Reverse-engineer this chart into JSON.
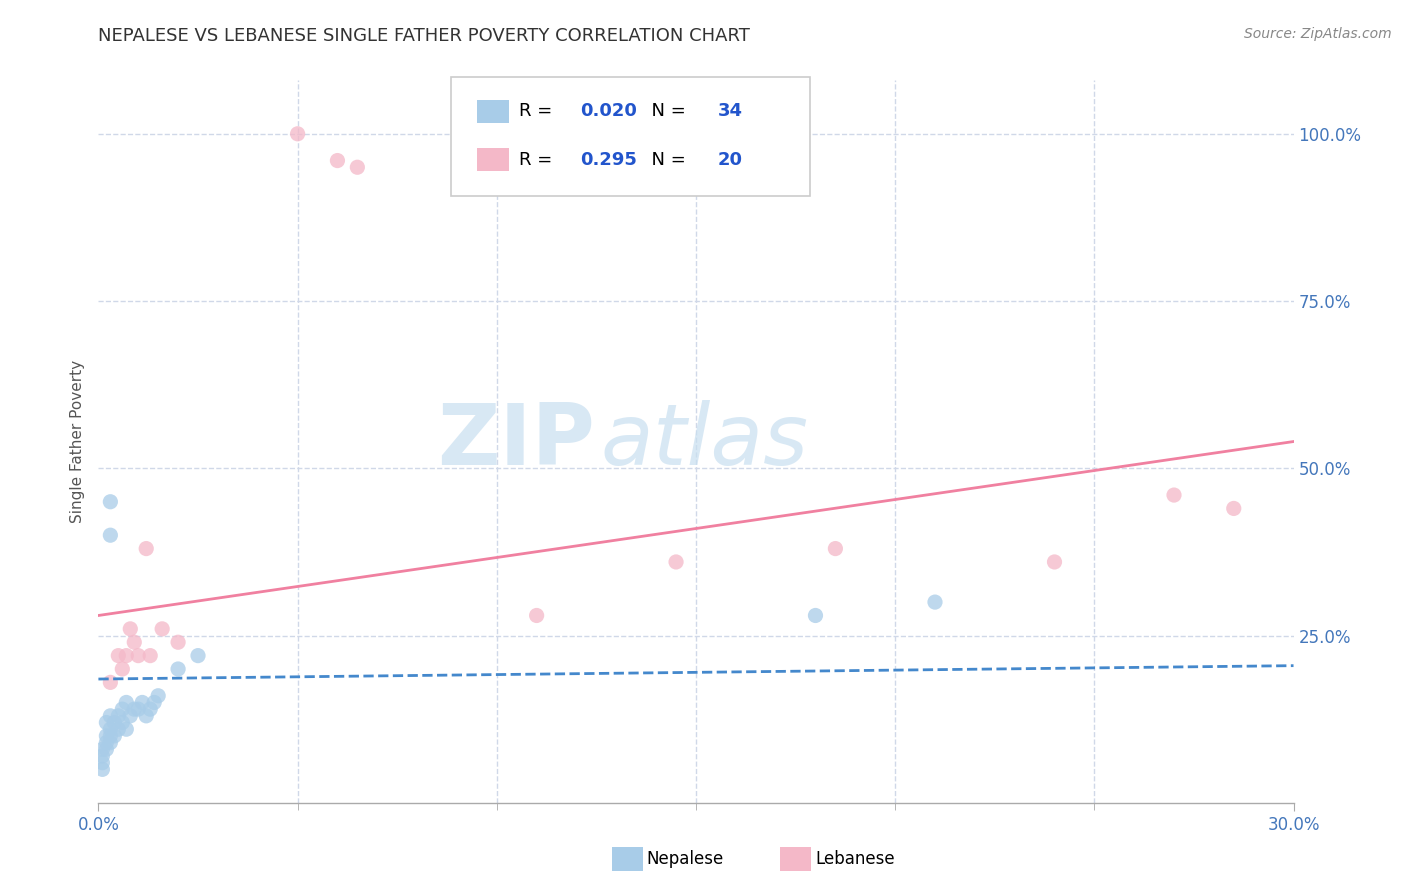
{
  "title": "NEPALESE VS LEBANESE SINGLE FATHER POVERTY CORRELATION CHART",
  "source": "Source: ZipAtlas.com",
  "ylabel": "Single Father Poverty",
  "xlim": [
    0.0,
    0.3
  ],
  "ylim": [
    0.0,
    1.08
  ],
  "xtick_values": [
    0.0,
    0.3
  ],
  "xtick_labels": [
    "0.0%",
    "30.0%"
  ],
  "xtick_minor_values": [
    0.05,
    0.1,
    0.15,
    0.2,
    0.25
  ],
  "ytick_values": [
    0.25,
    0.5,
    0.75,
    1.0
  ],
  "ytick_labels": [
    "25.0%",
    "50.0%",
    "75.0%",
    "100.0%"
  ],
  "nepalese_color": "#a8cce8",
  "lebanese_color": "#f4b8c8",
  "nepalese_R": 0.02,
  "nepalese_N": 34,
  "lebanese_R": 0.295,
  "lebanese_N": 20,
  "watermark_zip": "ZIP",
  "watermark_atlas": "atlas",
  "nepalese_scatter": [
    [
      0.001,
      0.05
    ],
    [
      0.001,
      0.06
    ],
    [
      0.001,
      0.07
    ],
    [
      0.001,
      0.08
    ],
    [
      0.002,
      0.08
    ],
    [
      0.002,
      0.09
    ],
    [
      0.002,
      0.1
    ],
    [
      0.002,
      0.12
    ],
    [
      0.003,
      0.09
    ],
    [
      0.003,
      0.1
    ],
    [
      0.003,
      0.11
    ],
    [
      0.003,
      0.13
    ],
    [
      0.004,
      0.1
    ],
    [
      0.004,
      0.12
    ],
    [
      0.005,
      0.11
    ],
    [
      0.005,
      0.13
    ],
    [
      0.006,
      0.12
    ],
    [
      0.006,
      0.14
    ],
    [
      0.007,
      0.11
    ],
    [
      0.007,
      0.15
    ],
    [
      0.008,
      0.13
    ],
    [
      0.009,
      0.14
    ],
    [
      0.01,
      0.14
    ],
    [
      0.011,
      0.15
    ],
    [
      0.012,
      0.13
    ],
    [
      0.013,
      0.14
    ],
    [
      0.014,
      0.15
    ],
    [
      0.015,
      0.16
    ],
    [
      0.02,
      0.2
    ],
    [
      0.025,
      0.22
    ],
    [
      0.003,
      0.4
    ],
    [
      0.003,
      0.45
    ],
    [
      0.18,
      0.28
    ],
    [
      0.21,
      0.3
    ]
  ],
  "lebanese_scatter": [
    [
      0.003,
      0.18
    ],
    [
      0.005,
      0.22
    ],
    [
      0.006,
      0.2
    ],
    [
      0.007,
      0.22
    ],
    [
      0.008,
      0.26
    ],
    [
      0.009,
      0.24
    ],
    [
      0.01,
      0.22
    ],
    [
      0.012,
      0.38
    ],
    [
      0.013,
      0.22
    ],
    [
      0.016,
      0.26
    ],
    [
      0.02,
      0.24
    ],
    [
      0.05,
      1.0
    ],
    [
      0.06,
      0.96
    ],
    [
      0.065,
      0.95
    ],
    [
      0.11,
      0.28
    ],
    [
      0.145,
      0.36
    ],
    [
      0.185,
      0.38
    ],
    [
      0.24,
      0.36
    ],
    [
      0.27,
      0.46
    ],
    [
      0.285,
      0.44
    ]
  ],
  "nepalese_line_x": [
    0.0,
    0.3
  ],
  "nepalese_line_y": [
    0.185,
    0.205
  ],
  "lebanese_line_x": [
    0.0,
    0.3
  ],
  "lebanese_line_y": [
    0.28,
    0.54
  ],
  "grid_color": "#d0d8e8",
  "title_color": "#333333",
  "axis_label_color": "#555555",
  "tick_label_color": "#4477bb",
  "legend_R_color": "#2255cc",
  "background_color": "#ffffff"
}
